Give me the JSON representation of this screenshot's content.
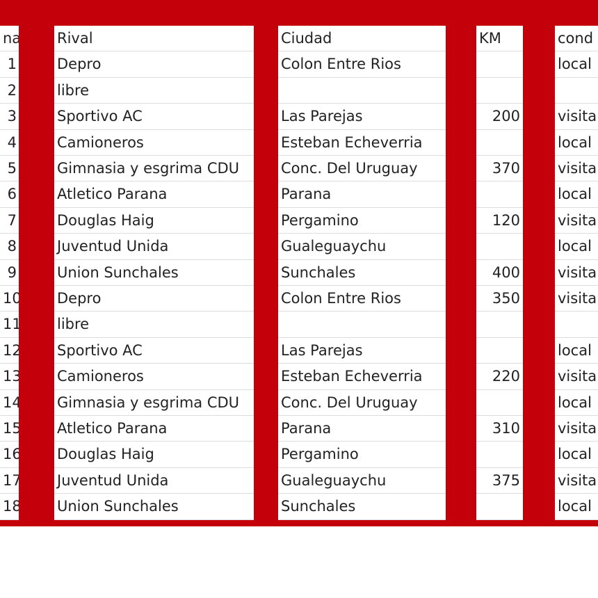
{
  "table": {
    "header": [
      "na",
      "Rival",
      "Ciudad",
      "KM",
      "cond"
    ],
    "rows": [
      [
        "1",
        "Depro",
        "Colon Entre Rios",
        null,
        "local"
      ],
      [
        "2",
        "libre",
        null,
        null,
        null
      ],
      [
        "3",
        "Sportivo AC",
        "Las Parejas",
        "200",
        "visita"
      ],
      [
        "4",
        "Camioneros",
        "Esteban Echeverria",
        null,
        "local"
      ],
      [
        "5",
        "Gimnasia y esgrima CDU",
        "Conc. Del Uruguay",
        "370",
        "visita"
      ],
      [
        "6",
        "Atletico Parana",
        "Parana",
        null,
        "local"
      ],
      [
        "7",
        "Douglas Haig",
        "Pergamino",
        "120",
        "visita"
      ],
      [
        "8",
        "Juventud Unida",
        "Gualeguaychu",
        null,
        "local"
      ],
      [
        "9",
        "Union Sunchales",
        "Sunchales",
        "400",
        "visita"
      ],
      [
        "10",
        "Depro",
        "Colon Entre Rios",
        "350",
        "visita"
      ],
      [
        "11",
        "libre",
        null,
        null,
        null
      ],
      [
        "12",
        "Sportivo AC",
        "Las Parejas",
        null,
        "local"
      ],
      [
        "13",
        "Camioneros",
        "Esteban Echeverria",
        "220",
        "visita"
      ],
      [
        "14",
        "Gimnasia y esgrima CDU",
        "Conc. Del Uruguay",
        null,
        "local"
      ],
      [
        "15",
        "Atletico Parana",
        "Parana",
        "310",
        "visita"
      ],
      [
        "16",
        "Douglas Haig",
        "Pergamino",
        null,
        "local"
      ],
      [
        "17",
        "Juventud Unida",
        "Gualeguaychu",
        "375",
        "visita"
      ],
      [
        "18",
        "Union Sunchales",
        "Sunchales",
        null,
        "local"
      ]
    ]
  }
}
